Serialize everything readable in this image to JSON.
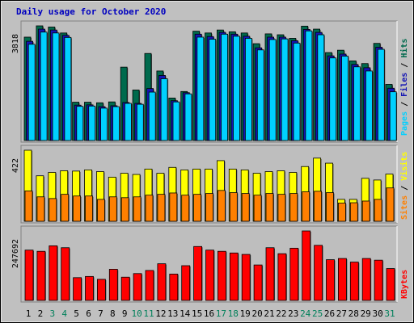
{
  "title": "Daily usage for October 2020",
  "chart_data": [
    {
      "type": "bar",
      "panel": "top",
      "ytick": "3818",
      "categories": [
        "1",
        "2",
        "3",
        "4",
        "5",
        "6",
        "7",
        "8",
        "9",
        "10",
        "11",
        "12",
        "13",
        "14",
        "15",
        "16",
        "17",
        "18",
        "19",
        "20",
        "21",
        "22",
        "23",
        "24",
        "25",
        "26",
        "27",
        "28",
        "29",
        "30",
        "31"
      ],
      "weekend_days": [
        "3",
        "4",
        "10",
        "11",
        "17",
        "18",
        "24",
        "25",
        "31"
      ],
      "series": [
        {
          "name": "Hits",
          "color": "#006a4d",
          "values": [
            3480,
            3860,
            3820,
            3620,
            1290,
            1290,
            1270,
            1300,
            2470,
            1700,
            2930,
            2340,
            1430,
            1650,
            3680,
            3620,
            3720,
            3660,
            3620,
            3260,
            3590,
            3560,
            3440,
            3850,
            3750,
            2960,
            3040,
            2680,
            2590,
            3270,
            1890
          ]
        },
        {
          "name": "Files",
          "color": "#1414b4",
          "values": [
            3340,
            3750,
            3720,
            3540,
            1190,
            1200,
            1140,
            1170,
            1280,
            1250,
            1750,
            2190,
            1340,
            1610,
            3580,
            3500,
            3640,
            3580,
            3510,
            3120,
            3480,
            3480,
            3360,
            3740,
            3640,
            2850,
            2910,
            2560,
            2450,
            3140,
            1760
          ]
        },
        {
          "name": "Pages",
          "color": "#00d0ff",
          "values": [
            3240,
            3650,
            3620,
            3470,
            1150,
            1160,
            1090,
            1140,
            1250,
            1220,
            1630,
            2080,
            1300,
            1570,
            3480,
            3410,
            3580,
            3510,
            3440,
            3050,
            3400,
            3420,
            3280,
            3690,
            3560,
            2780,
            2840,
            2480,
            2340,
            3070,
            1640
          ]
        }
      ]
    },
    {
      "type": "bar",
      "panel": "middle",
      "ytick": "422",
      "categories": [
        "1",
        "2",
        "3",
        "4",
        "5",
        "6",
        "7",
        "8",
        "9",
        "10",
        "11",
        "12",
        "13",
        "14",
        "15",
        "16",
        "17",
        "18",
        "19",
        "20",
        "21",
        "22",
        "23",
        "24",
        "25",
        "26",
        "27",
        "28",
        "29",
        "30",
        "31"
      ],
      "series": [
        {
          "name": "Visits",
          "color": "#ffff00",
          "values": [
            422,
            270,
            290,
            300,
            298,
            305,
            295,
            262,
            285,
            278,
            310,
            285,
            320,
            305,
            310,
            310,
            360,
            310,
            305,
            285,
            295,
            300,
            290,
            325,
            375,
            345,
            130,
            130,
            255,
            245,
            280
          ]
        },
        {
          "name": "Sites",
          "color": "#ff8000",
          "values": [
            180,
            145,
            135,
            160,
            150,
            150,
            130,
            145,
            140,
            145,
            155,
            160,
            168,
            155,
            160,
            165,
            183,
            170,
            165,
            155,
            165,
            160,
            165,
            175,
            178,
            170,
            108,
            110,
            120,
            130,
            198
          ]
        }
      ]
    },
    {
      "type": "bar",
      "panel": "bottom",
      "ytick": "247692",
      "categories": [
        "1",
        "2",
        "3",
        "4",
        "5",
        "6",
        "7",
        "8",
        "9",
        "10",
        "11",
        "12",
        "13",
        "14",
        "15",
        "16",
        "17",
        "18",
        "19",
        "20",
        "21",
        "22",
        "23",
        "24",
        "25",
        "26",
        "27",
        "28",
        "29",
        "30",
        "31"
      ],
      "series": [
        {
          "name": "KBytes",
          "color": "#ff0000",
          "values": [
            210000,
            205000,
            228000,
            220000,
            95000,
            100000,
            88000,
            130000,
            97000,
            112000,
            125000,
            153000,
            110000,
            145000,
            225000,
            210000,
            205000,
            198000,
            192000,
            148000,
            220000,
            195000,
            218000,
            290000,
            230000,
            170000,
            175000,
            160000,
            175000,
            168000,
            133000
          ]
        }
      ]
    }
  ]
}
